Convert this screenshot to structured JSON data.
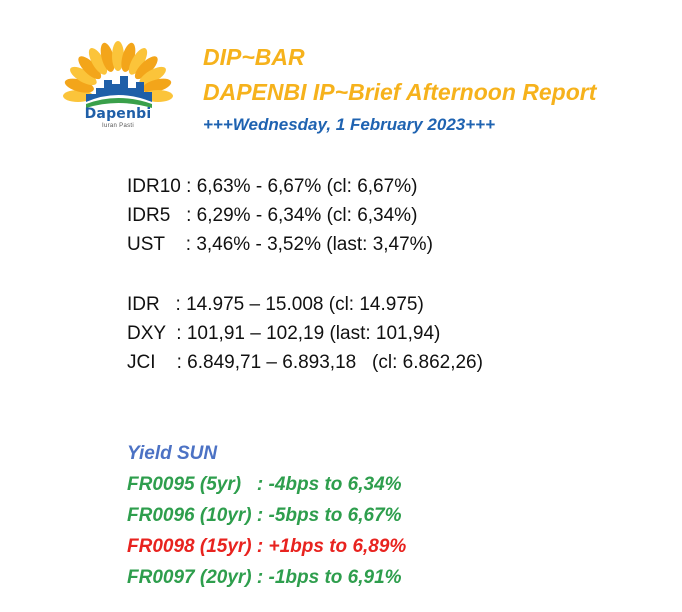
{
  "brand": {
    "name": "Dapenbi",
    "tagline": "Iuran Pasti",
    "colors": {
      "petal": "#f6b21c",
      "blue": "#1f5fa8",
      "green": "#3aa04a"
    }
  },
  "header": {
    "line1": "DIP~BAR",
    "line2": "DAPENBI IP~Brief Afternoon Report",
    "line3": "+++Wednesday, 1 February 2023+++"
  },
  "market": {
    "rows_top": [
      {
        "code": "IDR10",
        "text": "IDR10 : 6,63% - 6,67% (cl: 6,67%)"
      },
      {
        "code": "IDR5",
        "text": "IDR5   : 6,29% - 6,34% (cl: 6,34%)"
      },
      {
        "code": "UST",
        "text": "UST    : 3,46% - 3,52% (last: 3,47%)"
      }
    ],
    "rows_bottom": [
      {
        "code": "IDR",
        "text": "IDR   : 14.975 – 15.008 (cl: 14.975)"
      },
      {
        "code": "DXY",
        "text": "DXY  : 101,91 – 102,19 (last: 101,94)"
      },
      {
        "code": "JCI",
        "text": "JCI    : 6.849,71 – 6.893,18   (cl: 6.862,26)"
      }
    ]
  },
  "yield": {
    "title": "Yield SUN",
    "rows": [
      {
        "text": "FR0095 (5yr)   : -4bps to 6,34%",
        "color": "#2e9e4d"
      },
      {
        "text": "FR0096 (10yr) : -5bps to 6,67%",
        "color": "#2e9e4d"
      },
      {
        "text": "FR0098 (15yr) : +1bps to 6,89%",
        "color": "#e8231f"
      },
      {
        "text": "FR0097 (20yr) : -1bps to 6,91%",
        "color": "#2e9e4d"
      }
    ]
  }
}
